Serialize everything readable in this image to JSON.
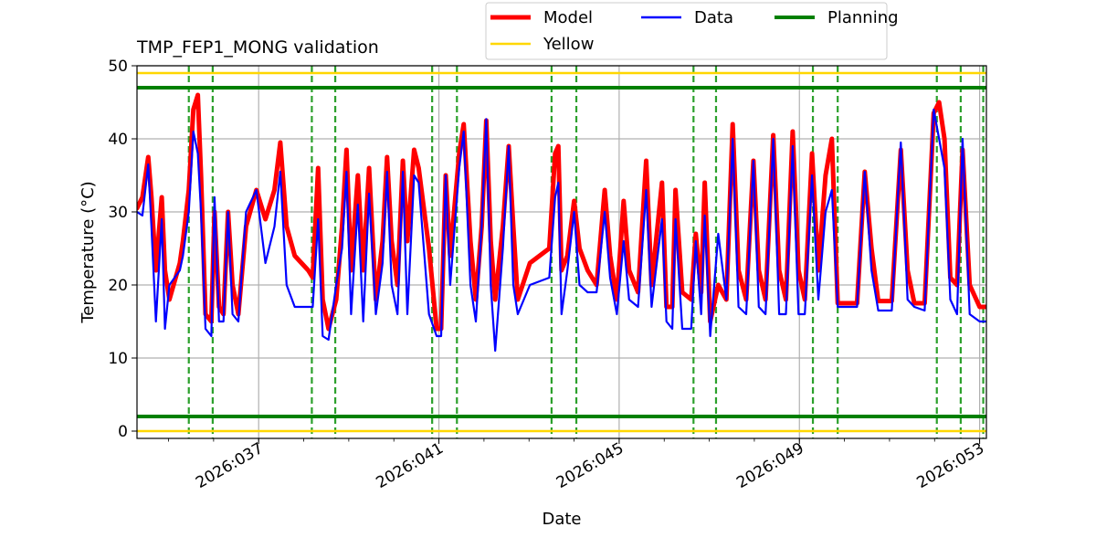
{
  "chart_data": {
    "type": "line",
    "title": "TMP_FEP1_MONG validation",
    "xlabel": "Date",
    "ylabel": "Temperature ($^\\circ$C)",
    "ylabel_display": "Temperature (°C)",
    "xlim": [
      34.3,
      53.15
    ],
    "ylim": [
      -1,
      50
    ],
    "grid": true,
    "legend_location": "top-center",
    "x_ticks": [
      {
        "value": 37,
        "label": "2026:037"
      },
      {
        "value": 41,
        "label": "2026:041"
      },
      {
        "value": 45,
        "label": "2026:045"
      },
      {
        "value": 49,
        "label": "2026:049"
      },
      {
        "value": 53,
        "label": "2026:053"
      }
    ],
    "y_ticks": [
      0,
      10,
      20,
      30,
      40,
      50
    ],
    "legend": [
      {
        "name": "Model",
        "color": "#ff0000"
      },
      {
        "name": "Data",
        "color": "#0000ff"
      },
      {
        "name": "Planning",
        "color": "#008000"
      },
      {
        "name": "Yellow",
        "color": "#ffd700"
      }
    ],
    "limits": [
      {
        "name": "Planning",
        "color": "#008000",
        "values": [
          47,
          2
        ]
      },
      {
        "name": "Yellow",
        "color": "#ffd700",
        "values": [
          49,
          0
        ]
      }
    ],
    "vertical_markers": {
      "color": "#2ca02c",
      "x": [
        35.45,
        35.98,
        38.18,
        38.7,
        40.85,
        41.4,
        43.5,
        44.05,
        46.65,
        47.15,
        49.3,
        49.85,
        52.05,
        52.58,
        53.08
      ]
    },
    "series": [
      {
        "name": "Model",
        "color": "#ff0000",
        "points": [
          [
            34.3,
            30.5
          ],
          [
            34.42,
            32
          ],
          [
            34.55,
            37.5
          ],
          [
            34.62,
            32
          ],
          [
            34.72,
            22
          ],
          [
            34.85,
            32
          ],
          [
            34.92,
            22
          ],
          [
            35.02,
            18
          ],
          [
            35.25,
            23
          ],
          [
            35.32,
            26
          ],
          [
            35.45,
            33
          ],
          [
            35.55,
            44
          ],
          [
            35.65,
            46
          ],
          [
            35.72,
            35
          ],
          [
            35.82,
            16
          ],
          [
            35.95,
            15
          ],
          [
            36.02,
            30
          ],
          [
            36.12,
            17
          ],
          [
            36.22,
            16
          ],
          [
            36.32,
            30
          ],
          [
            36.42,
            20
          ],
          [
            36.55,
            16
          ],
          [
            36.72,
            28
          ],
          [
            36.95,
            33
          ],
          [
            37.15,
            29
          ],
          [
            37.35,
            33
          ],
          [
            37.48,
            39.5
          ],
          [
            37.62,
            28
          ],
          [
            37.8,
            24
          ],
          [
            38.1,
            22
          ],
          [
            38.2,
            21
          ],
          [
            38.32,
            36
          ],
          [
            38.42,
            18
          ],
          [
            38.55,
            14
          ],
          [
            38.72,
            18
          ],
          [
            38.85,
            28
          ],
          [
            38.95,
            38.5
          ],
          [
            39.05,
            22
          ],
          [
            39.2,
            35
          ],
          [
            39.32,
            22
          ],
          [
            39.45,
            36
          ],
          [
            39.6,
            18
          ],
          [
            39.75,
            26
          ],
          [
            39.85,
            37.5
          ],
          [
            39.95,
            26
          ],
          [
            40.08,
            20
          ],
          [
            40.2,
            37
          ],
          [
            40.3,
            26
          ],
          [
            40.45,
            38.5
          ],
          [
            40.55,
            36
          ],
          [
            40.78,
            25
          ],
          [
            40.95,
            14
          ],
          [
            41.05,
            14
          ],
          [
            41.15,
            35
          ],
          [
            41.25,
            24
          ],
          [
            41.45,
            38
          ],
          [
            41.55,
            42
          ],
          [
            41.7,
            26
          ],
          [
            41.82,
            18
          ],
          [
            41.95,
            28
          ],
          [
            42.05,
            42.5
          ],
          [
            42.15,
            26
          ],
          [
            42.25,
            18
          ],
          [
            42.42,
            28
          ],
          [
            42.55,
            39
          ],
          [
            42.65,
            28
          ],
          [
            42.75,
            18
          ],
          [
            43.02,
            23
          ],
          [
            43.45,
            25
          ],
          [
            43.58,
            38
          ],
          [
            43.65,
            39
          ],
          [
            43.72,
            22
          ],
          [
            43.85,
            24
          ],
          [
            44.0,
            31.5
          ],
          [
            44.12,
            25
          ],
          [
            44.3,
            22
          ],
          [
            44.5,
            20
          ],
          [
            44.68,
            33
          ],
          [
            44.8,
            24
          ],
          [
            44.95,
            18
          ],
          [
            45.1,
            31.5
          ],
          [
            45.22,
            22
          ],
          [
            45.42,
            19
          ],
          [
            45.6,
            37
          ],
          [
            45.72,
            20
          ],
          [
            45.95,
            34
          ],
          [
            46.05,
            17
          ],
          [
            46.18,
            17
          ],
          [
            46.25,
            33
          ],
          [
            46.4,
            19
          ],
          [
            46.6,
            18
          ],
          [
            46.7,
            27
          ],
          [
            46.82,
            19
          ],
          [
            46.9,
            34
          ],
          [
            47.02,
            15
          ],
          [
            47.2,
            20
          ],
          [
            47.38,
            18
          ],
          [
            47.52,
            42
          ],
          [
            47.65,
            22
          ],
          [
            47.82,
            18
          ],
          [
            47.98,
            37
          ],
          [
            48.1,
            22
          ],
          [
            48.25,
            18
          ],
          [
            48.42,
            40.5
          ],
          [
            48.55,
            22
          ],
          [
            48.7,
            18
          ],
          [
            48.85,
            41
          ],
          [
            48.98,
            22
          ],
          [
            49.12,
            18
          ],
          [
            49.28,
            38
          ],
          [
            49.42,
            22
          ],
          [
            49.58,
            35
          ],
          [
            49.72,
            40
          ],
          [
            49.85,
            17.5
          ],
          [
            50.28,
            17.5
          ],
          [
            50.45,
            35.5
          ],
          [
            50.6,
            25
          ],
          [
            50.75,
            17.8
          ],
          [
            51.05,
            17.8
          ],
          [
            51.25,
            38.5
          ],
          [
            51.4,
            22
          ],
          [
            51.55,
            17.5
          ],
          [
            51.78,
            17.5
          ],
          [
            51.98,
            43.5
          ],
          [
            52.1,
            45
          ],
          [
            52.22,
            40
          ],
          [
            52.35,
            21
          ],
          [
            52.5,
            20
          ],
          [
            52.62,
            38.5
          ],
          [
            52.78,
            20
          ],
          [
            53.0,
            17
          ],
          [
            53.15,
            17
          ]
        ]
      },
      {
        "name": "Data",
        "color": "#0000ff",
        "points": [
          [
            34.3,
            30
          ],
          [
            34.42,
            29.5
          ],
          [
            34.55,
            36.5
          ],
          [
            34.62,
            28
          ],
          [
            34.72,
            15
          ],
          [
            34.85,
            29
          ],
          [
            34.92,
            14
          ],
          [
            35.02,
            20
          ],
          [
            35.25,
            22
          ],
          [
            35.32,
            24
          ],
          [
            35.45,
            30
          ],
          [
            35.55,
            41
          ],
          [
            35.65,
            38
          ],
          [
            35.72,
            30
          ],
          [
            35.82,
            14
          ],
          [
            35.95,
            13
          ],
          [
            36.02,
            32
          ],
          [
            36.12,
            15
          ],
          [
            36.22,
            15
          ],
          [
            36.32,
            30
          ],
          [
            36.42,
            16
          ],
          [
            36.55,
            15
          ],
          [
            36.72,
            30
          ],
          [
            36.95,
            33
          ],
          [
            37.15,
            23
          ],
          [
            37.35,
            28
          ],
          [
            37.48,
            35.5
          ],
          [
            37.62,
            20
          ],
          [
            37.8,
            17
          ],
          [
            38.1,
            17
          ],
          [
            38.2,
            17
          ],
          [
            38.32,
            29
          ],
          [
            38.42,
            13
          ],
          [
            38.55,
            12.5
          ],
          [
            38.72,
            20
          ],
          [
            38.85,
            25
          ],
          [
            38.95,
            35.5
          ],
          [
            39.05,
            16
          ],
          [
            39.2,
            31
          ],
          [
            39.32,
            15
          ],
          [
            39.45,
            32.5
          ],
          [
            39.6,
            16
          ],
          [
            39.75,
            23
          ],
          [
            39.85,
            35.5
          ],
          [
            39.95,
            20
          ],
          [
            40.08,
            16
          ],
          [
            40.2,
            35.5
          ],
          [
            40.3,
            16
          ],
          [
            40.45,
            35
          ],
          [
            40.55,
            34
          ],
          [
            40.78,
            16
          ],
          [
            40.95,
            13
          ],
          [
            41.05,
            13
          ],
          [
            41.15,
            35
          ],
          [
            41.25,
            20
          ],
          [
            41.45,
            36
          ],
          [
            41.55,
            41
          ],
          [
            41.7,
            20
          ],
          [
            41.82,
            15
          ],
          [
            41.95,
            28
          ],
          [
            42.05,
            42.7
          ],
          [
            42.15,
            20
          ],
          [
            42.25,
            11
          ],
          [
            42.42,
            25
          ],
          [
            42.55,
            39
          ],
          [
            42.65,
            20
          ],
          [
            42.75,
            16
          ],
          [
            43.02,
            20
          ],
          [
            43.45,
            21
          ],
          [
            43.58,
            32
          ],
          [
            43.65,
            34
          ],
          [
            43.72,
            16
          ],
          [
            43.85,
            22
          ],
          [
            44.0,
            30
          ],
          [
            44.12,
            20
          ],
          [
            44.3,
            19
          ],
          [
            44.5,
            19
          ],
          [
            44.68,
            30
          ],
          [
            44.8,
            21
          ],
          [
            44.95,
            16
          ],
          [
            45.1,
            26
          ],
          [
            45.22,
            18
          ],
          [
            45.42,
            17
          ],
          [
            45.6,
            33
          ],
          [
            45.72,
            17
          ],
          [
            45.95,
            29
          ],
          [
            46.05,
            15
          ],
          [
            46.18,
            14
          ],
          [
            46.25,
            29
          ],
          [
            46.4,
            14
          ],
          [
            46.6,
            14
          ],
          [
            46.7,
            26
          ],
          [
            46.82,
            16
          ],
          [
            46.9,
            29.5
          ],
          [
            47.02,
            13
          ],
          [
            47.2,
            27
          ],
          [
            47.38,
            18
          ],
          [
            47.52,
            40
          ],
          [
            47.65,
            17
          ],
          [
            47.82,
            16
          ],
          [
            47.98,
            37
          ],
          [
            48.1,
            17
          ],
          [
            48.25,
            16
          ],
          [
            48.42,
            40
          ],
          [
            48.55,
            16
          ],
          [
            48.7,
            16
          ],
          [
            48.85,
            39
          ],
          [
            48.98,
            16
          ],
          [
            49.12,
            16
          ],
          [
            49.28,
            35
          ],
          [
            49.42,
            18
          ],
          [
            49.58,
            30
          ],
          [
            49.72,
            33
          ],
          [
            49.85,
            17
          ],
          [
            50.28,
            17
          ],
          [
            50.45,
            35.5
          ],
          [
            50.6,
            22
          ],
          [
            50.75,
            16.5
          ],
          [
            51.05,
            16.5
          ],
          [
            51.25,
            39.5
          ],
          [
            51.4,
            18
          ],
          [
            51.55,
            17
          ],
          [
            51.78,
            16.5
          ],
          [
            51.98,
            44
          ],
          [
            52.1,
            40
          ],
          [
            52.22,
            36
          ],
          [
            52.35,
            18
          ],
          [
            52.5,
            16
          ],
          [
            52.62,
            40
          ],
          [
            52.78,
            16
          ],
          [
            53.0,
            15
          ],
          [
            53.15,
            15
          ]
        ]
      }
    ]
  }
}
